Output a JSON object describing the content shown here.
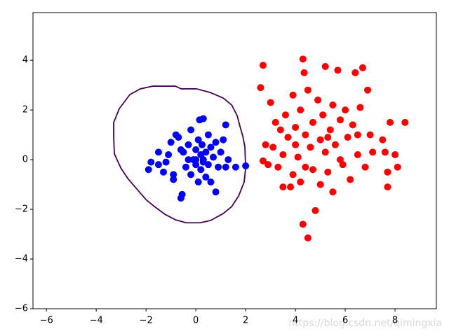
{
  "chart_data": {
    "type": "scatter",
    "xlim": [
      -6.54,
      9.66
    ],
    "ylim": [
      -6,
      5.92
    ],
    "xticks": [
      {
        "value": -6,
        "label": "−6"
      },
      {
        "value": -4,
        "label": "−4"
      },
      {
        "value": -2,
        "label": "−2"
      },
      0,
      2,
      4,
      6,
      8
    ],
    "yticks": [
      {
        "value": -6,
        "label": "−6"
      },
      {
        "value": -4,
        "label": "−4"
      },
      {
        "value": -2,
        "label": "−2"
      },
      0,
      2,
      4
    ],
    "grid": false,
    "annotation": "https://blog.csdn.net/qimingxia",
    "series": [
      {
        "color": "#0000ff",
        "x": [
          -1.9,
          -1.8,
          -1.5,
          -1.3,
          -1.2,
          -1.1,
          -1.0,
          -0.9,
          -0.8,
          -0.7,
          -0.6,
          -0.55,
          -0.5,
          -0.4,
          -0.3,
          -0.2,
          -0.2,
          -0.1,
          0.0,
          0.0,
          0.1,
          0.1,
          0.15,
          0.2,
          0.2,
          0.25,
          0.3,
          0.3,
          0.4,
          0.4,
          0.5,
          0.5,
          0.6,
          0.6,
          0.7,
          0.8,
          0.8,
          0.9,
          1.0,
          1.1,
          1.2,
          1.2,
          1.3,
          1.6,
          2.0,
          -0.9,
          -1.5,
          -0.3,
          0.0,
          0.3,
          -0.6
        ],
        "values": [
          -0.4,
          -0.1,
          -0.2,
          -0.5,
          -0.1,
          0.2,
          0.7,
          -0.8,
          1.0,
          0.9,
          -1.55,
          -1.4,
          0.3,
          -0.3,
          0.6,
          1.2,
          -0.6,
          0.0,
          0.4,
          -0.2,
          0.8,
          -0.9,
          1.6,
          0.2,
          -0.4,
          0.6,
          1.65,
          -0.1,
          0.3,
          -0.7,
          1.0,
          -0.2,
          0.5,
          -0.9,
          0.1,
          -1.3,
          0.7,
          -0.3,
          0.3,
          0.8,
          1.4,
          -0.3,
          0.0,
          -0.3,
          -0.25,
          -0.6,
          0.3,
          0.0,
          0.0,
          0.0,
          0.4
        ]
      },
      {
        "color": "#ff0000",
        "x": [
          2.6,
          2.7,
          2.7,
          2.8,
          2.9,
          3.0,
          3.1,
          3.2,
          3.3,
          3.4,
          3.5,
          3.5,
          3.6,
          3.7,
          3.8,
          3.9,
          3.9,
          4.0,
          4.1,
          4.2,
          4.2,
          4.3,
          4.3,
          4.35,
          4.4,
          4.4,
          4.5,
          4.5,
          4.6,
          4.7,
          4.7,
          4.8,
          4.9,
          5.0,
          5.0,
          5.1,
          5.2,
          5.2,
          5.3,
          5.4,
          5.5,
          5.5,
          5.6,
          5.7,
          5.8,
          5.9,
          6.0,
          6.1,
          6.2,
          6.3,
          6.4,
          6.5,
          6.6,
          6.7,
          6.8,
          6.9,
          7.0,
          7.1,
          7.5,
          7.6,
          7.7,
          7.7,
          7.8,
          8.0,
          8.1,
          8.4,
          5.8,
          4.0,
          6.5,
          5.3
        ],
        "values": [
          2.9,
          3.8,
          -0.05,
          0.6,
          -0.2,
          2.3,
          0.5,
          1.5,
          -0.3,
          1.2,
          0.2,
          -1.1,
          1.8,
          0.9,
          -1.1,
          2.6,
          -0.6,
          1.3,
          0.1,
          2.0,
          -0.9,
          4.05,
          -2.6,
          3.5,
          1.0,
          -0.3,
          -3.15,
          2.8,
          0.5,
          1.5,
          -0.4,
          -2.05,
          2.4,
          0.8,
          -1.0,
          1.8,
          3.75,
          0.3,
          -0.5,
          1.2,
          2.2,
          -1.3,
          0.6,
          3.6,
          1.6,
          -0.2,
          2.0,
          0.9,
          -0.8,
          1.4,
          3.5,
          0.2,
          2.1,
          3.7,
          -0.3,
          2.8,
          1.0,
          0.3,
          0.8,
          0.3,
          -0.5,
          -1.1,
          1.5,
          0.2,
          -0.3,
          1.5,
          0.0,
          0.6,
          1.0,
          0.9
        ]
      }
    ],
    "contour": {
      "color": "#440154",
      "x": [
        -1.72,
        -0.82,
        -0.59,
        0.03,
        0.59,
        1.1,
        1.44,
        1.66,
        1.77,
        1.89,
        1.97,
        2.0,
        1.94,
        1.72,
        1.44,
        1.1,
        0.59,
        0.17,
        -0.39,
        -0.82,
        -1.24,
        -1.66,
        -2.0,
        -2.37,
        -2.73,
        -3.01,
        -3.27,
        -3.3,
        -3.3,
        -3.07,
        -2.65,
        -2.23
      ],
      "y": [
        2.96,
        2.96,
        2.85,
        2.85,
        2.7,
        2.48,
        2.2,
        1.77,
        1.35,
        0.93,
        0.51,
        -0.34,
        -0.9,
        -1.46,
        -1.89,
        -2.17,
        -2.45,
        -2.54,
        -2.54,
        -2.42,
        -2.2,
        -1.89,
        -1.61,
        -1.18,
        -0.76,
        -0.34,
        0.23,
        0.93,
        1.49,
        2.06,
        2.62,
        2.85
      ]
    }
  }
}
